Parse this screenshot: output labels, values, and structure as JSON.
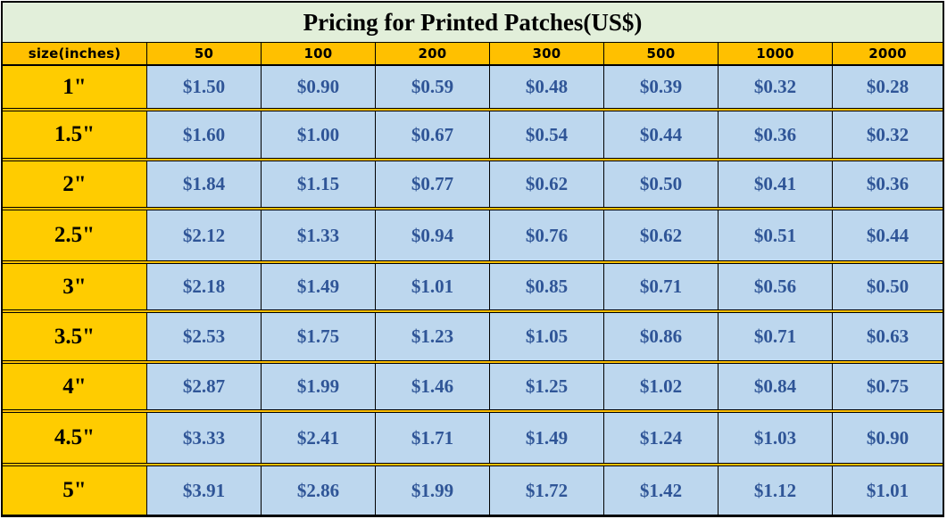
{
  "title": "Pricing for Printed Patches(US$)",
  "header": {
    "size_label": "size(inches)",
    "quantities": [
      "50",
      "100",
      "200",
      "300",
      "500",
      "1000",
      "2000"
    ]
  },
  "rows": [
    {
      "size": "1\"",
      "prices": [
        "$1.50",
        "$0.90",
        "$0.59",
        "$0.48",
        "$0.39",
        "$0.32",
        "$0.28"
      ]
    },
    {
      "size": "1.5\"",
      "prices": [
        "$1.60",
        "$1.00",
        "$0.67",
        "$0.54",
        "$0.44",
        "$0.36",
        "$0.32"
      ]
    },
    {
      "size": "2\"",
      "prices": [
        "$1.84",
        "$1.15",
        "$0.77",
        "$0.62",
        "$0.50",
        "$0.41",
        "$0.36"
      ]
    },
    {
      "size": "2.5\"",
      "prices": [
        "$2.12",
        "$1.33",
        "$0.94",
        "$0.76",
        "$0.62",
        "$0.51",
        "$0.44"
      ]
    },
    {
      "size": "3\"",
      "prices": [
        "$2.18",
        "$1.49",
        "$1.01",
        "$0.85",
        "$0.71",
        "$0.56",
        "$0.50"
      ]
    },
    {
      "size": "3.5\"",
      "prices": [
        "$2.53",
        "$1.75",
        "$1.23",
        "$1.05",
        "$0.86",
        "$0.71",
        "$0.63"
      ]
    },
    {
      "size": "4\"",
      "prices": [
        "$2.87",
        "$1.99",
        "$1.46",
        "$1.25",
        "$1.02",
        "$0.84",
        "$0.75"
      ]
    },
    {
      "size": "4.5\"",
      "prices": [
        "$3.33",
        "$2.41",
        "$1.71",
        "$1.49",
        "$1.24",
        "$1.03",
        "$0.90"
      ]
    },
    {
      "size": "5\"",
      "prices": [
        "$3.91",
        "$2.86",
        "$1.99",
        "$1.72",
        "$1.42",
        "$1.12",
        "$1.01"
      ]
    }
  ],
  "colors": {
    "title_bg": "#e2efda",
    "header_bg": "#ffc000",
    "size_cell_bg": "#ffcc00",
    "price_cell_bg": "#bdd7ee",
    "price_text": "#2f5597",
    "border": "#000000"
  }
}
